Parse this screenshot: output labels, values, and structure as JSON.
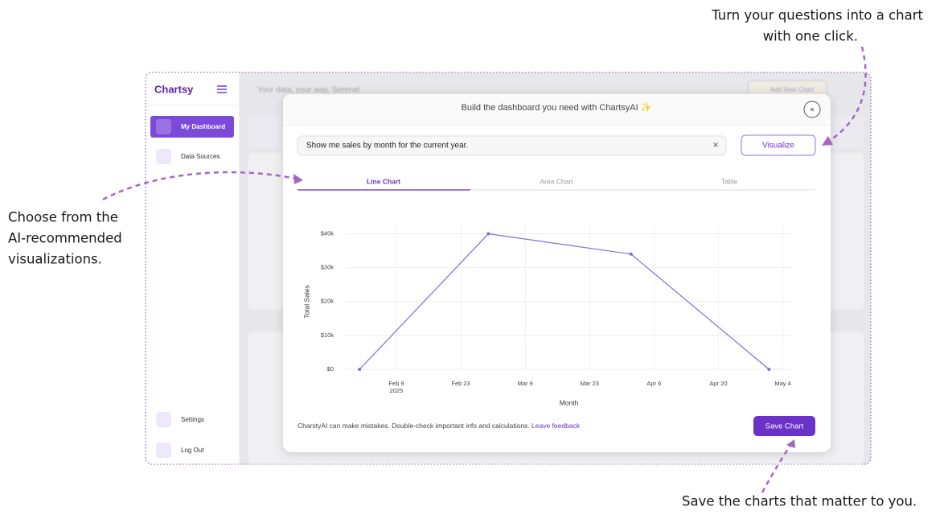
{
  "annotations": {
    "top_right": [
      "Turn your questions into a chart",
      "with one click."
    ],
    "left": [
      "Choose from the",
      "AI-recommended",
      "visualizations."
    ],
    "bottom": "Save the charts that matter to you."
  },
  "sidebar": {
    "logo": "Chartsy",
    "nav": [
      "My Dashboard",
      "Data Sources"
    ],
    "footer": [
      "Settings",
      "Log Out"
    ]
  },
  "background": {
    "greeting": "Your data, your way, Serena!",
    "button": "Add New Chart"
  },
  "modal": {
    "title": "Build the dashboard you need with ChartsyAI ✨",
    "close": "×",
    "query": "Show me sales by month for the current year.",
    "clear": "×",
    "visualize": "Visualize",
    "tabs": [
      "Line Chart",
      "Area Chart",
      "Table"
    ],
    "active_tab": 0,
    "disclaimer": "CharstyAI can make mistakes. Double-check important info and calculations.",
    "feedback": "Leave feedback",
    "save": "Save Chart"
  },
  "chart_data": {
    "type": "line",
    "xlabel": "Month",
    "ylabel": "Total Sales",
    "x": [
      "2025-02-01",
      "2025-03-01",
      "2025-04-01",
      "2025-05-01"
    ],
    "series": [
      {
        "color": "#7b6fd9",
        "values": [
          0,
          40000,
          34000,
          0
        ]
      }
    ],
    "xlim": [
      "2025-01-29",
      "2025-05-06"
    ],
    "xticks": [
      {
        "value": "2025-02-09",
        "label": "Feb 9\n2025"
      },
      {
        "value": "2025-02-23",
        "label": "Feb 23"
      },
      {
        "value": "2025-03-09",
        "label": "Mar 9"
      },
      {
        "value": "2025-03-23",
        "label": "Mar 23"
      },
      {
        "value": "2025-04-06",
        "label": "Apr 6"
      },
      {
        "value": "2025-04-20",
        "label": "Apr 20"
      },
      {
        "value": "2025-05-04",
        "label": "May 4"
      }
    ],
    "ylim": [
      0,
      42500
    ],
    "yticks": [
      {
        "value": 0,
        "label": "$0"
      },
      {
        "value": 10000,
        "label": "$10k"
      },
      {
        "value": 20000,
        "label": "$20k"
      },
      {
        "value": 30000,
        "label": "$30k"
      },
      {
        "value": 40000,
        "label": "$40k"
      }
    ],
    "grid": true
  }
}
